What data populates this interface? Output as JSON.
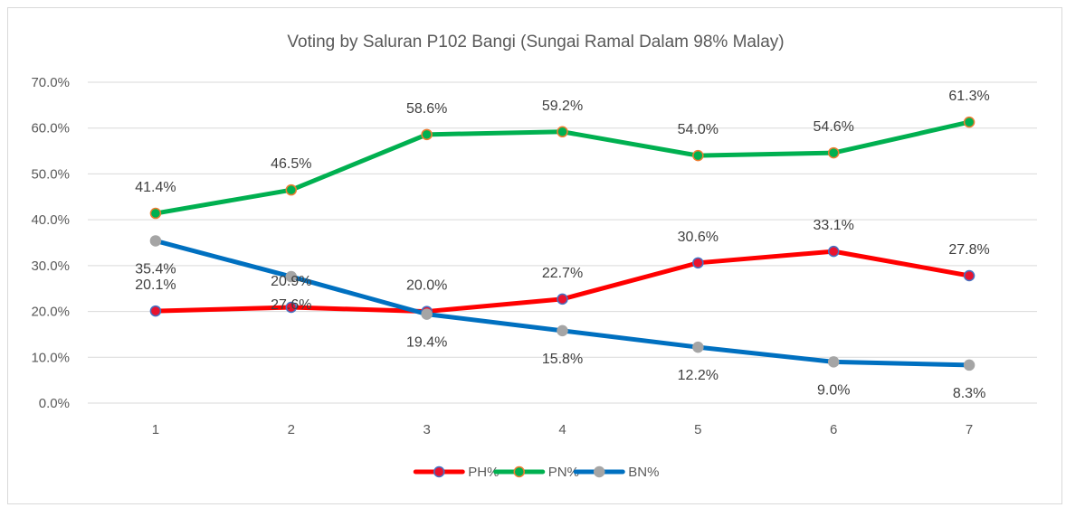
{
  "chart_data": {
    "type": "line",
    "title": "Voting by Saluran P102 Bangi (Sungai Ramal Dalam 98% Malay)",
    "xlabel": "",
    "ylabel": "",
    "categories": [
      "1",
      "2",
      "3",
      "4",
      "5",
      "6",
      "7"
    ],
    "y_ticks": [
      "0.0%",
      "10.0%",
      "20.0%",
      "30.0%",
      "40.0%",
      "50.0%",
      "60.0%",
      "70.0%"
    ],
    "ylim": [
      0,
      70
    ],
    "grid": true,
    "legend_position": "bottom",
    "series": [
      {
        "name": "PH%",
        "color": "#ff0000",
        "marker_fill": "#e8132f",
        "marker_stroke": "#4472c4",
        "values": [
          20.1,
          20.9,
          20.0,
          22.7,
          30.6,
          33.1,
          27.8
        ],
        "labels": [
          "20.1%",
          "20.9%",
          "20.0%",
          "22.7%",
          "30.6%",
          "33.1%",
          "27.8%"
        ],
        "label_position": "above"
      },
      {
        "name": "PN%",
        "color": "#00b050",
        "marker_fill": "#00b050",
        "marker_stroke": "#ed7d31",
        "values": [
          41.4,
          46.5,
          58.6,
          59.2,
          54.0,
          54.6,
          61.3
        ],
        "labels": [
          "41.4%",
          "46.5%",
          "58.6%",
          "59.2%",
          "54.0%",
          "54.6%",
          "61.3%"
        ],
        "label_position": "above"
      },
      {
        "name": "BN%",
        "color": "#0070c0",
        "marker_fill": "#a5a5a5",
        "marker_stroke": "#a5a5a5",
        "values": [
          35.4,
          27.6,
          19.4,
          15.8,
          12.2,
          9.0,
          8.3
        ],
        "labels": [
          "35.4%",
          "27.6%",
          "19.4%",
          "15.8%",
          "12.2%",
          "9.0%",
          "8.3%"
        ],
        "label_position": "below"
      }
    ]
  }
}
